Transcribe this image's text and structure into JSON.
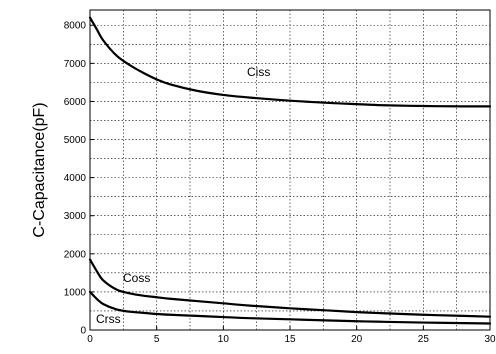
{
  "chart_data": {
    "type": "line",
    "title": "",
    "xlabel": "",
    "ylabel": "C-Capacitance(pF)",
    "xlim": [
      0,
      30
    ],
    "ylim": [
      0,
      8400
    ],
    "xticks": [
      0,
      5,
      10,
      15,
      20,
      25,
      30
    ],
    "yticks": [
      0,
      1000,
      2000,
      3000,
      4000,
      5000,
      6000,
      7000,
      8000
    ],
    "grid": true,
    "legend": "none",
    "series": [
      {
        "name": "Ciss",
        "x": [
          0,
          0.5,
          1,
          2,
          3,
          4,
          5,
          6,
          8,
          10,
          12,
          15,
          18,
          20,
          22,
          25,
          28,
          30
        ],
        "values": [
          8200,
          7900,
          7600,
          7200,
          6950,
          6750,
          6580,
          6450,
          6280,
          6170,
          6100,
          6020,
          5960,
          5930,
          5900,
          5880,
          5870,
          5870
        ]
      },
      {
        "name": "Coss",
        "x": [
          0,
          0.5,
          1,
          2,
          3,
          4,
          5,
          6,
          8,
          10,
          12,
          15,
          18,
          20,
          22,
          25,
          28,
          30
        ],
        "values": [
          1850,
          1550,
          1300,
          1060,
          960,
          900,
          860,
          820,
          760,
          700,
          640,
          570,
          510,
          470,
          440,
          400,
          370,
          350
        ]
      },
      {
        "name": "Crss",
        "x": [
          0,
          0.5,
          1,
          2,
          3,
          4,
          5,
          6,
          8,
          10,
          12,
          15,
          18,
          20,
          22,
          25,
          28,
          30
        ],
        "values": [
          1000,
          820,
          680,
          540,
          480,
          450,
          420,
          400,
          370,
          340,
          310,
          280,
          250,
          230,
          215,
          195,
          180,
          170
        ]
      }
    ]
  },
  "labels": {
    "ciss": "Ciss",
    "coss": "Coss",
    "crss": "Crss",
    "ylabel": "C-Capacitance(pF)",
    "xticks": [
      "0",
      "5",
      "10",
      "15",
      "20",
      "25",
      "30"
    ],
    "yticks": [
      "0",
      "1000",
      "2000",
      "3000",
      "4000",
      "5000",
      "6000",
      "7000",
      "8000"
    ]
  },
  "colors": {
    "line": "#000000",
    "grid": "#000000",
    "frame": "#000000",
    "background": "#ffffff"
  }
}
